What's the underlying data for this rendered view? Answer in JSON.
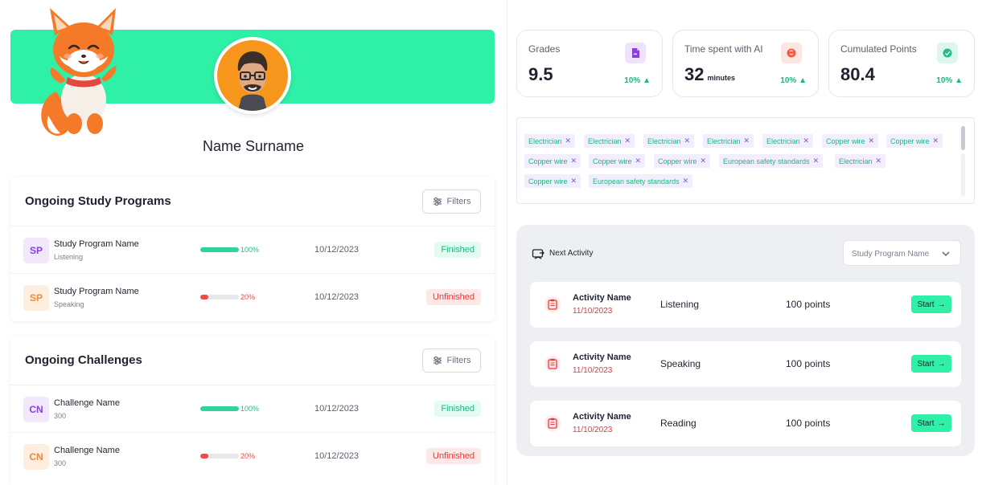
{
  "profile": {
    "name": "Name Surname"
  },
  "study_programs": {
    "title": "Ongoing Study Programs",
    "filters_label": "Filters",
    "rows": [
      {
        "initials": "SP",
        "name": "Study Program Name",
        "sub": "Listening",
        "progress": 100,
        "progress_label": "100%",
        "date": "10/12/2023",
        "status": "Finished"
      },
      {
        "initials": "SP",
        "name": "Study Program Name",
        "sub": "Speaking",
        "progress": 20,
        "progress_label": "20%",
        "date": "10/12/2023",
        "status": "Unfinished"
      }
    ]
  },
  "challenges": {
    "title": "Ongoing Challenges",
    "filters_label": "Filters",
    "rows": [
      {
        "initials": "CN",
        "name": "Challenge Name",
        "sub": "300",
        "progress": 100,
        "progress_label": "100%",
        "date": "10/12/2023",
        "status": "Finished"
      },
      {
        "initials": "CN",
        "name": "Challenge Name",
        "sub": "300",
        "progress": 20,
        "progress_label": "20%",
        "date": "10/12/2023",
        "status": "Unfinished"
      }
    ]
  },
  "stats": [
    {
      "label": "Grades",
      "value": "9.5",
      "unit": "",
      "change": "10% ▲",
      "icon": "document-icon",
      "color": "#8b3fd9"
    },
    {
      "label": "Time spent with AI",
      "value": "32",
      "unit": "minutes",
      "change": "10% ▲",
      "icon": "ai-brain-icon",
      "color": "#f05a48"
    },
    {
      "label": "Cumulated Points",
      "value": "80.4",
      "unit": "",
      "change": "10% ▲",
      "icon": "points-icon",
      "color": "#1fbf86"
    }
  ],
  "tags": [
    "Electrician",
    "Electrician",
    "Electrician",
    "Electrician",
    "Electrician",
    "Copper wire",
    "Copper wire",
    "Copper wire",
    "Copper wire",
    "Copper wire",
    "European safety standards",
    "Electrician",
    "Copper wire",
    "European safety standards"
  ],
  "next_activity": {
    "label": "Next Activity",
    "select_value": "Study Program Name",
    "start_label": "Start",
    "activities": [
      {
        "name": "Activity Name",
        "date": "11/10/2023",
        "skill": "Listening",
        "points": "100 points"
      },
      {
        "name": "Activity Name",
        "date": "11/10/2023",
        "skill": "Speaking",
        "points": "100 points"
      },
      {
        "name": "Activity Name",
        "date": "11/10/2023",
        "skill": "Reading",
        "points": "100 points"
      }
    ]
  }
}
